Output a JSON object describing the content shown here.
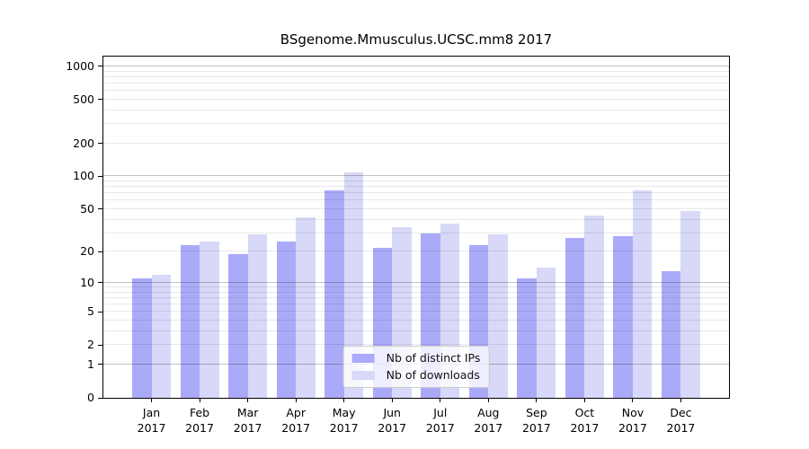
{
  "title": "BSgenome.Mmusculus.UCSC.mm8 2017",
  "colors": {
    "ips_bar": "#aaaaf8",
    "downloads_bar": "#d8d8f8",
    "grid_major": "rgba(0,0,0,0.24)",
    "grid_minor": "rgba(0,0,0,0.09)",
    "spine": "#000000"
  },
  "legend": {
    "items": [
      {
        "label": "Nb of distinct IPs",
        "color_key": "ips_bar"
      },
      {
        "label": "Nb of downloads",
        "color_key": "downloads_bar"
      }
    ]
  },
  "y_axis": {
    "tick_labels": [
      "0",
      "1",
      "2",
      "5",
      "10",
      "20",
      "50",
      "100",
      "200",
      "500",
      "1000"
    ],
    "tick_values": [
      0,
      1,
      2,
      5,
      10,
      20,
      50,
      100,
      200,
      500,
      1000
    ],
    "major_grid_values": [
      1,
      10,
      100,
      1000
    ],
    "minor_grid_values": [
      2,
      3,
      4,
      5,
      6,
      7,
      8,
      9,
      20,
      30,
      40,
      50,
      60,
      70,
      80,
      90,
      200,
      300,
      400,
      500,
      600,
      700,
      800,
      900
    ]
  },
  "x_axis": {
    "months": [
      "Jan",
      "Feb",
      "Mar",
      "Apr",
      "May",
      "Jun",
      "Jul",
      "Aug",
      "Sep",
      "Oct",
      "Nov",
      "Dec"
    ],
    "year": "2017"
  },
  "chart_data": {
    "type": "bar",
    "title": "BSgenome.Mmusculus.UCSC.mm8 2017",
    "categories": [
      "Jan 2017",
      "Feb 2017",
      "Mar 2017",
      "Apr 2017",
      "May 2017",
      "Jun 2017",
      "Jul 2017",
      "Aug 2017",
      "Sep 2017",
      "Oct 2017",
      "Nov 2017",
      "Dec 2017"
    ],
    "series": [
      {
        "name": "Nb of distinct IPs",
        "values": [
          11,
          23,
          19,
          25,
          75,
          22,
          30,
          23,
          11,
          27,
          28,
          13
        ]
      },
      {
        "name": "Nb of downloads",
        "values": [
          12,
          25,
          29,
          42,
          108,
          34,
          37,
          29,
          14,
          44,
          75,
          48
        ]
      }
    ],
    "xlabel": "",
    "ylabel": "",
    "y_ticks": [
      0,
      1,
      2,
      5,
      10,
      20,
      50,
      100,
      200,
      500,
      1000
    ],
    "y_scale": "pseudo-log: position proportional to log10(value+1)",
    "ylim": [
      0,
      1250
    ],
    "grid": "horizontal major and minor gridlines, drawn over bars",
    "legend_position": "lower center"
  }
}
